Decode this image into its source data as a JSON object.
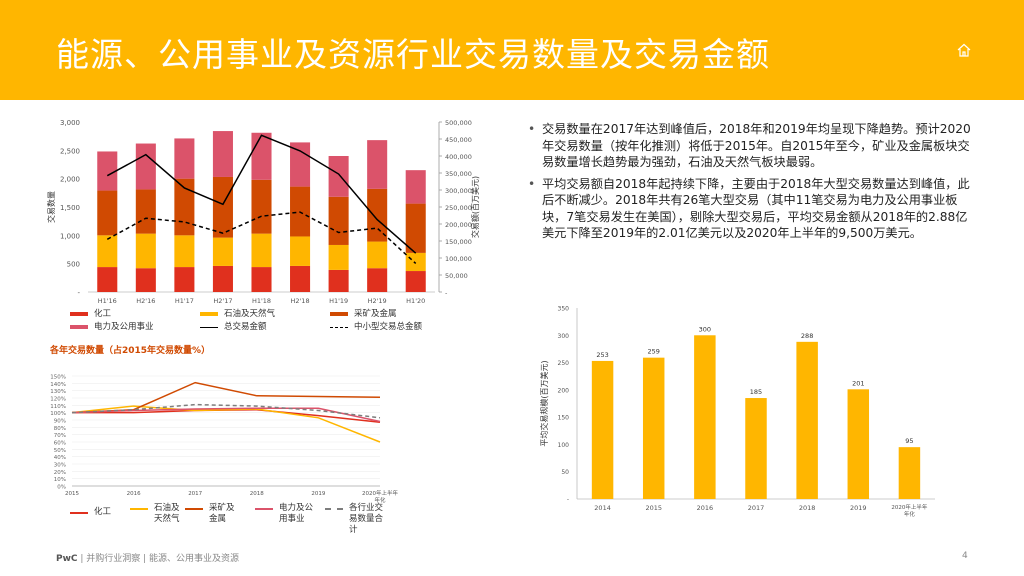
{
  "header": {
    "title": "能源、公用事业及资源行业交易数量及交易金额",
    "home_icon": "home-icon"
  },
  "bullets": [
    "交易数量在2017年达到峰值后，2018年和2019年均呈现下降趋势。预计2020年交易数量（按年化推测）将低于2015年。自2015年至今，矿业及金属板块交易数量增长趋势最为强劲，石油及天然气板块最弱。",
    "平均交易额自2018年起持续下降，主要由于2018年大型交易数量达到峰值，此后不断减少。2018年共有26笔大型交易（其中11笔交易为电力及公用事业板块，7笔交易发生在美国），剔除大型交易后，平均交易金额从2018年的2.88亿美元下降至2019年的2.01亿美元以及2020年上半年的9,500万美元。"
  ],
  "footer": {
    "brand": "PwC",
    "text": " | 并购行业洞察 | 能源、公用事业及资源",
    "page": "4"
  },
  "chart_data": [
    {
      "type": "bar",
      "stacked": true,
      "categories": [
        "H1'16",
        "H2'16",
        "H1'17",
        "H2'17",
        "H1'18",
        "H2'18",
        "H1'19",
        "H2'19",
        "H1'20"
      ],
      "series": [
        {
          "name": "化工",
          "color": "#e0301e",
          "values": [
            440,
            420,
            440,
            460,
            440,
            460,
            390,
            420,
            370
          ]
        },
        {
          "name": "石油及天然气",
          "color": "#ffb600",
          "values": [
            560,
            610,
            560,
            500,
            590,
            520,
            440,
            470,
            320
          ]
        },
        {
          "name": "采矿及金属",
          "color": "#d04a02",
          "values": [
            790,
            780,
            1000,
            1070,
            950,
            880,
            850,
            930,
            870
          ]
        },
        {
          "name": "电力及公用事业",
          "color": "#db536a",
          "values": [
            690,
            810,
            710,
            810,
            830,
            780,
            720,
            860,
            590
          ]
        }
      ],
      "lines": [
        {
          "name": "总交易金额",
          "color": "#000000",
          "dash": false,
          "axis": "right",
          "values": [
            342000,
            404000,
            306000,
            258000,
            461000,
            415000,
            347000,
            213000,
            114000
          ]
        },
        {
          "name": "中小型交易总金额",
          "color": "#000000",
          "dash": true,
          "axis": "right",
          "values": [
            155000,
            217000,
            206000,
            173000,
            223000,
            235000,
            175000,
            188000,
            84000
          ]
        }
      ],
      "yleft_ticks": [
        "3,000",
        "2,500",
        "2,000",
        "1,500",
        "1,000",
        "500",
        "-"
      ],
      "ylim_left": [
        0,
        3000
      ],
      "yright_ticks": [
        "500,000",
        "450,000",
        "400,000",
        "350,000",
        "300,000",
        "250,000",
        "200,000",
        "150,000",
        "100,000",
        "50,000",
        "-"
      ],
      "ylim_right": [
        0,
        500000
      ],
      "ylabel_left": "交易数量",
      "ylabel_right": "交易额(百万美元)",
      "legend": [
        "化工",
        "石油及天然气",
        "采矿及金属",
        "电力及公用事业",
        "总交易金额",
        "中小型交易总金额"
      ]
    },
    {
      "type": "line",
      "title": "各年交易数量（占2015年交易数量%）",
      "x": [
        "2015",
        "2016",
        "2017",
        "2018",
        "2019",
        "2020年上半年年化"
      ],
      "series": [
        {
          "name": "化工",
          "color": "#e0301e",
          "dash": false,
          "values": [
            100,
            100,
            103,
            104,
            96,
            87
          ]
        },
        {
          "name": "石油及天然气",
          "color": "#ffb600",
          "dash": false,
          "values": [
            100,
            109,
            103,
            105,
            93,
            60
          ]
        },
        {
          "name": "采矿及金属",
          "color": "#d04a02",
          "dash": false,
          "values": [
            100,
            104,
            141,
            123,
            122,
            121
          ]
        },
        {
          "name": "电力及公用事业",
          "color": "#db536a",
          "dash": false,
          "values": [
            100,
            103,
            105,
            106,
            106,
            88
          ]
        },
        {
          "name": "各行业交易数量合计",
          "color": "#7d7d7d",
          "dash": true,
          "values": [
            100,
            104,
            111,
            109,
            103,
            93
          ]
        }
      ],
      "yticks": [
        "150%",
        "140%",
        "130%",
        "120%",
        "110%",
        "100%",
        "90%",
        "80%",
        "70%",
        "60%",
        "50%",
        "40%",
        "30%",
        "20%",
        "10%",
        "0%"
      ],
      "ylim": [
        0,
        150
      ],
      "legend": [
        "化工",
        "石油及\n天然气",
        "采矿及\n金属",
        "电力及公\n用事业",
        "各行业交\n易数量合\n计"
      ]
    },
    {
      "type": "bar",
      "categories": [
        "2014",
        "2015",
        "2016",
        "2017",
        "2018",
        "2019",
        "2020年上半年年化"
      ],
      "values": [
        253,
        259,
        300,
        185,
        288,
        201,
        95
      ],
      "labels": [
        "253",
        "259",
        "300",
        "185",
        "288",
        "201",
        "95"
      ],
      "color": "#ffb600",
      "yticks": [
        "350",
        "300",
        "250",
        "200",
        "150",
        "100",
        "50",
        "-"
      ],
      "ylim": [
        0,
        350
      ],
      "ylabel": "平均交易规模(百万美元)"
    }
  ]
}
